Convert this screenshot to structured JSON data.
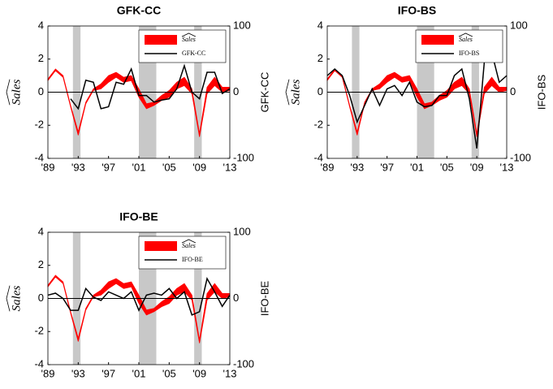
{
  "chart_data": [
    {
      "type": "line",
      "title": "GFK-CC",
      "ylabel": "Sales",
      "y2label": "GFK-CC",
      "legend": "upper right",
      "x": [
        1989,
        1990,
        1991,
        1992,
        1993,
        1994,
        1995,
        1996,
        1997,
        1998,
        1999,
        2000,
        2001,
        2002,
        2003,
        2004,
        2005,
        2006,
        2007,
        2008,
        2009,
        2010,
        2011,
        2012,
        2013
      ],
      "xlim": [
        1989,
        2013
      ],
      "xticks": [
        {
          "value": 1989,
          "label": "'89"
        },
        {
          "value": 1993,
          "label": "'93"
        },
        {
          "value": 1997,
          "label": "'97"
        },
        {
          "value": 2001,
          "label": "'01"
        },
        {
          "value": 2005,
          "label": "'05"
        },
        {
          "value": 2009,
          "label": "'09"
        },
        {
          "value": 2013,
          "label": "'13"
        }
      ],
      "ylim": [
        -4,
        4
      ],
      "yticks": [
        -4,
        -2,
        0,
        2,
        4
      ],
      "y2lim": [
        -100,
        100
      ],
      "y2ticks": [
        -100,
        0,
        100
      ],
      "shaded_x": [
        [
          1992.3,
          1993.3
        ],
        [
          2001,
          2003.3
        ],
        [
          2008.3,
          2009.3
        ]
      ],
      "shade_color": "#c8c8c8",
      "series": [
        {
          "name": "Sales",
          "color": "#ff0000",
          "lower": [
            0.7,
            1.3,
            0.9,
            -0.9,
            -2.6,
            -0.7,
            0.1,
            0.2,
            0.6,
            0.9,
            0.6,
            0.7,
            -0.3,
            -1.0,
            -0.8,
            -0.5,
            -0.3,
            0.2,
            0.4,
            -0.1,
            -2.7,
            -0.1,
            0.4,
            0.0,
            0.1
          ],
          "upper": [
            0.8,
            1.4,
            1.0,
            -0.8,
            -2.4,
            -0.6,
            0.2,
            0.5,
            1.0,
            1.2,
            0.9,
            1.0,
            0.2,
            -0.7,
            -0.6,
            -0.2,
            0.1,
            0.6,
            0.9,
            0.2,
            -2.5,
            0.3,
            0.9,
            0.3,
            0.3
          ]
        },
        {
          "name": "GFK-CC",
          "color": "#000000",
          "axis": "y2",
          "values": [
            null,
            null,
            null,
            -10,
            -25,
            18,
            15,
            -25,
            -22,
            15,
            12,
            35,
            -5,
            -5,
            -15,
            -12,
            -10,
            5,
            40,
            0,
            -10,
            30,
            30,
            -2,
            5
          ]
        }
      ]
    },
    {
      "type": "line",
      "title": "IFO-BS",
      "ylabel": "Sales",
      "y2label": "IFO-BS",
      "legend": "upper right",
      "x": [
        1989,
        1990,
        1991,
        1992,
        1993,
        1994,
        1995,
        1996,
        1997,
        1998,
        1999,
        2000,
        2001,
        2002,
        2003,
        2004,
        2005,
        2006,
        2007,
        2008,
        2009,
        2010,
        2011,
        2012,
        2013
      ],
      "xlim": [
        1989,
        2013
      ],
      "xticks": [
        {
          "value": 1989,
          "label": "'89"
        },
        {
          "value": 1993,
          "label": "'93"
        },
        {
          "value": 1997,
          "label": "'97"
        },
        {
          "value": 2001,
          "label": "'01"
        },
        {
          "value": 2005,
          "label": "'05"
        },
        {
          "value": 2009,
          "label": "'09"
        },
        {
          "value": 2013,
          "label": "'13"
        }
      ],
      "ylim": [
        -4,
        4
      ],
      "yticks": [
        -4,
        -2,
        0,
        2,
        4
      ],
      "y2lim": [
        -100,
        100
      ],
      "y2ticks": [
        -100,
        0,
        100
      ],
      "shaded_x": [
        [
          1992.3,
          1993.3
        ],
        [
          2001,
          2003.3
        ],
        [
          2008.3,
          2009.3
        ]
      ],
      "shade_color": "#c8c8c8",
      "series": [
        {
          "name": "Sales",
          "color": "#ff0000",
          "lower": [
            0.7,
            1.3,
            0.9,
            -0.9,
            -2.6,
            -0.7,
            0.1,
            0.2,
            0.6,
            0.9,
            0.6,
            0.7,
            -0.3,
            -1.0,
            -0.8,
            -0.5,
            -0.3,
            0.2,
            0.4,
            -0.1,
            -2.7,
            -0.1,
            0.4,
            0.0,
            0.1
          ],
          "upper": [
            0.8,
            1.4,
            1.0,
            -0.8,
            -2.4,
            -0.6,
            0.2,
            0.5,
            1.0,
            1.2,
            0.9,
            1.0,
            0.2,
            -0.7,
            -0.6,
            -0.2,
            0.1,
            0.6,
            0.9,
            0.2,
            -2.5,
            0.3,
            0.9,
            0.3,
            0.3
          ]
        },
        {
          "name": "IFO-BS",
          "color": "#000000",
          "axis": "y2",
          "values": [
            25,
            35,
            25,
            -5,
            -45,
            -20,
            5,
            -20,
            5,
            10,
            -5,
            15,
            -15,
            -22,
            -20,
            -5,
            -5,
            25,
            35,
            -10,
            -85,
            45,
            60,
            15,
            25
          ]
        }
      ]
    },
    {
      "type": "line",
      "title": "IFO-BE",
      "ylabel": "Sales",
      "y2label": "IFO-BE",
      "legend": "upper right",
      "x": [
        1989,
        1990,
        1991,
        1992,
        1993,
        1994,
        1995,
        1996,
        1997,
        1998,
        1999,
        2000,
        2001,
        2002,
        2003,
        2004,
        2005,
        2006,
        2007,
        2008,
        2009,
        2010,
        2011,
        2012,
        2013
      ],
      "xlim": [
        1989,
        2013
      ],
      "xticks": [
        {
          "value": 1989,
          "label": "'89"
        },
        {
          "value": 1993,
          "label": "'93"
        },
        {
          "value": 1997,
          "label": "'97"
        },
        {
          "value": 2001,
          "label": "'01"
        },
        {
          "value": 2005,
          "label": "'05"
        },
        {
          "value": 2009,
          "label": "'09"
        },
        {
          "value": 2013,
          "label": "'13"
        }
      ],
      "ylim": [
        -4,
        4
      ],
      "yticks": [
        -4,
        -2,
        0,
        2,
        4
      ],
      "y2lim": [
        -100,
        100
      ],
      "y2ticks": [
        -100,
        0,
        100
      ],
      "shaded_x": [
        [
          1992.3,
          1993.3
        ],
        [
          2001,
          2003.3
        ],
        [
          2008.3,
          2009.3
        ]
      ],
      "shade_color": "#c8c8c8",
      "series": [
        {
          "name": "Sales",
          "color": "#ff0000",
          "lower": [
            0.7,
            1.3,
            0.9,
            -0.9,
            -2.6,
            -0.7,
            0.1,
            0.2,
            0.6,
            0.9,
            0.6,
            0.7,
            -0.3,
            -1.0,
            -0.8,
            -0.5,
            -0.3,
            0.2,
            0.4,
            -0.1,
            -2.7,
            -0.1,
            0.4,
            0.0,
            0.1
          ],
          "upper": [
            0.8,
            1.4,
            1.0,
            -0.8,
            -2.4,
            -0.6,
            0.2,
            0.5,
            1.0,
            1.2,
            0.9,
            1.0,
            0.2,
            -0.7,
            -0.6,
            -0.2,
            0.1,
            0.6,
            0.9,
            0.2,
            -2.5,
            0.3,
            0.9,
            0.3,
            0.3
          ]
        },
        {
          "name": "IFO-BE",
          "color": "#000000",
          "axis": "y2",
          "values": [
            5,
            8,
            0,
            -18,
            -18,
            15,
            2,
            -3,
            10,
            5,
            0,
            10,
            -18,
            5,
            8,
            5,
            15,
            0,
            10,
            -25,
            -20,
            30,
            10,
            -12,
            5
          ]
        }
      ]
    }
  ]
}
